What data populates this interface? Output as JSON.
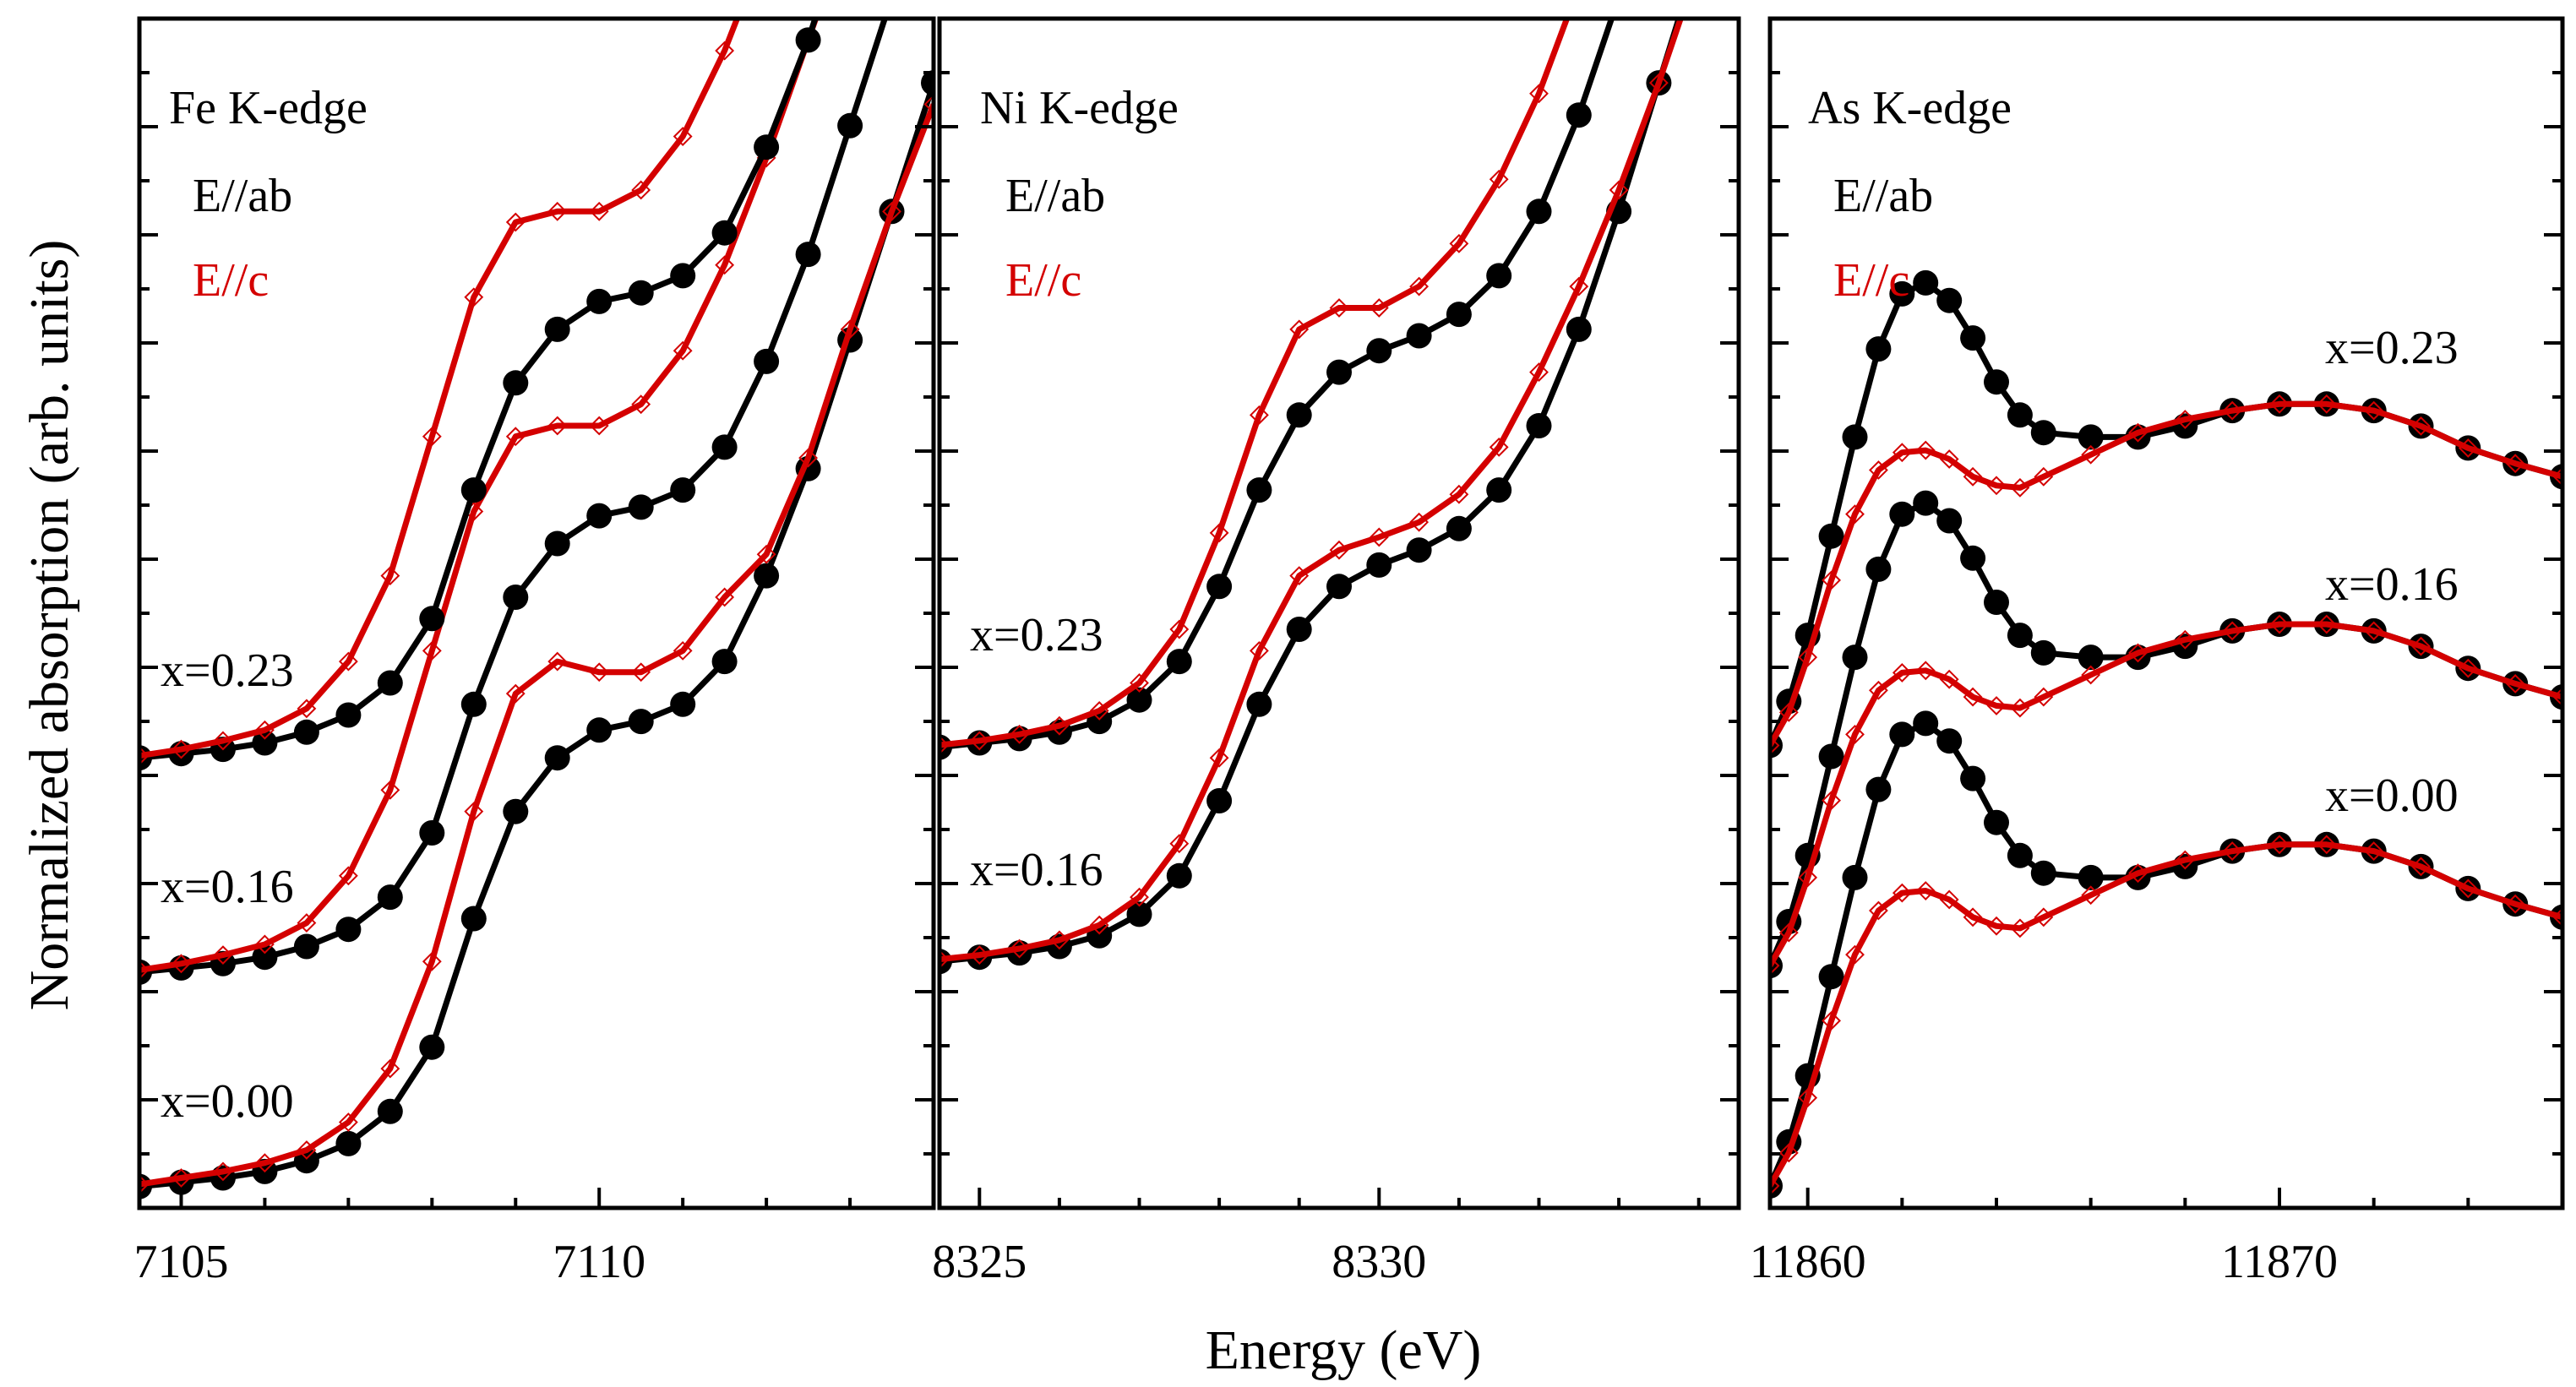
{
  "colors": {
    "ab": "#000000",
    "c": "#d40000"
  },
  "ylabel": "Normalized absorption (arb. units)",
  "xlabel": "Energy (eV)",
  "chart_data": [
    {
      "type": "line",
      "title": "Fe K-edge",
      "legend": [
        "E//ab",
        "E//c"
      ],
      "xlim": [
        7104.5,
        7114.0
      ],
      "ylim": [
        -0.05,
        5.5
      ],
      "xticks": [
        7105,
        7110
      ],
      "x": [
        7104.5,
        7105.0,
        7105.5,
        7106.0,
        7106.5,
        7107.0,
        7107.5,
        7108.0,
        7108.5,
        7109.0,
        7109.5,
        7110.0,
        7110.5,
        7111.0,
        7111.5,
        7112.0,
        7112.5,
        7113.0,
        7113.5,
        7114.0
      ],
      "series": [
        {
          "name": "E//ab",
          "composition": "x=0.00",
          "offset": 0.0,
          "values": [
            0.05,
            0.07,
            0.09,
            0.12,
            0.17,
            0.25,
            0.4,
            0.7,
            1.3,
            1.8,
            2.05,
            2.18,
            2.22,
            2.3,
            2.5,
            2.9,
            3.4,
            4.0,
            4.6,
            5.2
          ]
        },
        {
          "name": "E//c",
          "composition": "x=0.00",
          "offset": 0.0,
          "values": [
            0.06,
            0.09,
            0.12,
            0.16,
            0.22,
            0.35,
            0.6,
            1.1,
            1.8,
            2.35,
            2.5,
            2.45,
            2.45,
            2.55,
            2.8,
            3.0,
            3.45,
            4.05,
            4.6,
            5.1
          ]
        },
        {
          "name": "E//ab",
          "composition": "x=0.16",
          "offset": 1.0,
          "values": [
            0.05,
            0.07,
            0.09,
            0.12,
            0.17,
            0.25,
            0.4,
            0.7,
            1.3,
            1.8,
            2.05,
            2.18,
            2.22,
            2.3,
            2.5,
            2.9,
            3.4,
            4.0,
            4.6,
            5.2
          ]
        },
        {
          "name": "E//c",
          "composition": "x=0.16",
          "offset": 1.0,
          "values": [
            0.06,
            0.09,
            0.13,
            0.18,
            0.28,
            0.5,
            0.9,
            1.55,
            2.2,
            2.55,
            2.6,
            2.6,
            2.7,
            2.95,
            3.35,
            3.85,
            4.4,
            4.95,
            5.4,
            5.8
          ]
        },
        {
          "name": "E//ab",
          "composition": "x=0.23",
          "offset": 2.0,
          "values": [
            0.05,
            0.07,
            0.09,
            0.12,
            0.17,
            0.25,
            0.4,
            0.7,
            1.3,
            1.8,
            2.05,
            2.18,
            2.22,
            2.3,
            2.5,
            2.9,
            3.4,
            4.0,
            4.6,
            5.2
          ]
        },
        {
          "name": "E//c",
          "composition": "x=0.23",
          "offset": 2.0,
          "values": [
            0.06,
            0.09,
            0.13,
            0.18,
            0.28,
            0.5,
            0.9,
            1.55,
            2.2,
            2.55,
            2.6,
            2.6,
            2.7,
            2.95,
            3.35,
            3.85,
            4.4,
            4.95,
            5.4,
            5.8
          ]
        }
      ],
      "annotations": [
        "x=0.23",
        "x=0.16",
        "x=0.00"
      ]
    },
    {
      "type": "line",
      "title": "Ni K-edge",
      "legend": [
        "E//ab",
        "E//c"
      ],
      "xlim": [
        8324.5,
        8334.5
      ],
      "ylim": [
        -0.05,
        5.5
      ],
      "xticks": [
        8325,
        8330
      ],
      "x": [
        8324.5,
        8325.0,
        8325.5,
        8326.0,
        8326.5,
        8327.0,
        8327.5,
        8328.0,
        8328.5,
        8329.0,
        8329.5,
        8330.0,
        8330.5,
        8331.0,
        8331.5,
        8332.0,
        8332.5,
        8333.0,
        8333.5,
        8334.0,
        8334.5
      ],
      "series": [
        {
          "name": "E//ab",
          "composition": "x=0.16",
          "offset": 1.1,
          "values": [
            0.0,
            0.02,
            0.04,
            0.07,
            0.12,
            0.22,
            0.4,
            0.75,
            1.2,
            1.55,
            1.75,
            1.85,
            1.92,
            2.02,
            2.2,
            2.5,
            2.95,
            3.5,
            4.1,
            4.7,
            5.3
          ]
        },
        {
          "name": "E//c",
          "composition": "x=0.16",
          "offset": 1.1,
          "values": [
            0.01,
            0.03,
            0.06,
            0.1,
            0.17,
            0.3,
            0.55,
            0.95,
            1.45,
            1.8,
            1.92,
            1.98,
            2.05,
            2.18,
            2.4,
            2.75,
            3.15,
            3.6,
            4.1,
            4.65,
            5.2
          ]
        },
        {
          "name": "E//ab",
          "composition": "x=0.23",
          "offset": 2.1,
          "values": [
            0.0,
            0.02,
            0.04,
            0.07,
            0.12,
            0.22,
            0.4,
            0.75,
            1.2,
            1.55,
            1.75,
            1.85,
            1.92,
            2.02,
            2.2,
            2.5,
            2.95,
            3.5,
            4.1,
            4.7,
            5.3
          ]
        },
        {
          "name": "E//c",
          "composition": "x=0.23",
          "offset": 2.1,
          "values": [
            0.01,
            0.03,
            0.06,
            0.1,
            0.17,
            0.3,
            0.55,
            1.0,
            1.55,
            1.95,
            2.05,
            2.05,
            2.15,
            2.35,
            2.65,
            3.05,
            3.55,
            4.1,
            4.65,
            5.2,
            5.75
          ]
        }
      ],
      "annotations": [
        "x=0.23",
        "x=0.16"
      ]
    },
    {
      "type": "line",
      "title": "As K-edge",
      "legend": [
        "E//ab",
        "E//c"
      ],
      "xlim": [
        11859.2,
        11876.0
      ],
      "ylim": [
        -0.1,
        5.3
      ],
      "xticks": [
        11860,
        11870
      ],
      "x": [
        11859.2,
        11859.6,
        11860.0,
        11860.5,
        11861.0,
        11861.5,
        11862.0,
        11862.5,
        11863.0,
        11863.5,
        11864.0,
        11864.5,
        11865.0,
        11866.0,
        11867.0,
        11868.0,
        11869.0,
        11870.0,
        11871.0,
        11872.0,
        11873.0,
        11874.0,
        11875.0,
        11876.0
      ],
      "series": [
        {
          "name": "E//ab",
          "composition": "x=0.00",
          "offset": 0.0,
          "values": [
            0.0,
            0.2,
            0.5,
            0.95,
            1.4,
            1.8,
            2.05,
            2.1,
            2.02,
            1.85,
            1.65,
            1.5,
            1.42,
            1.4,
            1.4,
            1.45,
            1.52,
            1.55,
            1.55,
            1.52,
            1.45,
            1.35,
            1.28,
            1.22
          ]
        },
        {
          "name": "E//c",
          "composition": "x=0.00",
          "offset": 0.0,
          "values": [
            0.0,
            0.15,
            0.4,
            0.75,
            1.05,
            1.25,
            1.33,
            1.34,
            1.3,
            1.22,
            1.18,
            1.17,
            1.22,
            1.32,
            1.42,
            1.48,
            1.52,
            1.55,
            1.55,
            1.52,
            1.45,
            1.35,
            1.28,
            1.22
          ]
        },
        {
          "name": "E//ab",
          "composition": "x=0.16",
          "offset": 1.0,
          "values": [
            0.0,
            0.2,
            0.5,
            0.95,
            1.4,
            1.8,
            2.05,
            2.1,
            2.02,
            1.85,
            1.65,
            1.5,
            1.42,
            1.4,
            1.4,
            1.45,
            1.52,
            1.55,
            1.55,
            1.52,
            1.45,
            1.35,
            1.28,
            1.22
          ]
        },
        {
          "name": "E//c",
          "composition": "x=0.16",
          "offset": 1.0,
          "values": [
            0.0,
            0.15,
            0.4,
            0.75,
            1.05,
            1.25,
            1.33,
            1.34,
            1.3,
            1.22,
            1.18,
            1.17,
            1.22,
            1.32,
            1.42,
            1.48,
            1.52,
            1.55,
            1.55,
            1.52,
            1.45,
            1.35,
            1.28,
            1.22
          ]
        },
        {
          "name": "E//ab",
          "composition": "x=0.23",
          "offset": 2.0,
          "values": [
            0.0,
            0.2,
            0.5,
            0.95,
            1.4,
            1.8,
            2.05,
            2.1,
            2.02,
            1.85,
            1.65,
            1.5,
            1.42,
            1.4,
            1.4,
            1.45,
            1.52,
            1.55,
            1.55,
            1.52,
            1.45,
            1.35,
            1.28,
            1.22
          ]
        },
        {
          "name": "E//c",
          "composition": "x=0.23",
          "offset": 2.0,
          "values": [
            0.0,
            0.15,
            0.4,
            0.75,
            1.05,
            1.25,
            1.33,
            1.34,
            1.3,
            1.22,
            1.18,
            1.17,
            1.22,
            1.32,
            1.42,
            1.48,
            1.52,
            1.55,
            1.55,
            1.52,
            1.45,
            1.35,
            1.28,
            1.22
          ]
        }
      ],
      "annotations": [
        "x=0.23",
        "x=0.16",
        "x=0.00"
      ]
    }
  ]
}
